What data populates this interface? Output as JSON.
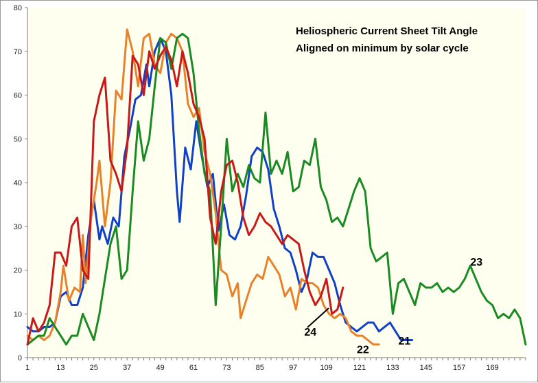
{
  "chart_data": {
    "type": "line",
    "title": "Heliospheric Current Sheet Tilt Angle",
    "subtitle": "Aligned on minimum by solar cycle",
    "xlabel": "",
    "ylabel": "",
    "xlim": [
      1,
      181
    ],
    "ylim": [
      0,
      80
    ],
    "x_ticks": [
      1,
      13,
      25,
      37,
      49,
      61,
      73,
      85,
      97,
      109,
      121,
      133,
      145,
      157,
      169
    ],
    "y_ticks": [
      0,
      10,
      20,
      30,
      40,
      50,
      60,
      70,
      80
    ],
    "grid": false,
    "legend": "none",
    "plot_background": "#fffff0",
    "series": [
      {
        "name": "21",
        "color": "#1040c8",
        "points": [
          [
            1,
            7
          ],
          [
            3,
            6
          ],
          [
            5,
            6
          ],
          [
            7,
            7
          ],
          [
            9,
            7
          ],
          [
            11,
            8
          ],
          [
            13,
            14
          ],
          [
            15,
            15
          ],
          [
            17,
            12
          ],
          [
            19,
            12
          ],
          [
            21,
            16
          ],
          [
            23,
            28
          ],
          [
            25,
            36
          ],
          [
            27,
            27
          ],
          [
            28,
            30
          ],
          [
            30,
            26
          ],
          [
            32,
            32
          ],
          [
            34,
            30
          ],
          [
            36,
            46
          ],
          [
            38,
            52
          ],
          [
            40,
            59
          ],
          [
            42,
            60
          ],
          [
            44,
            67
          ],
          [
            45,
            62
          ],
          [
            47,
            70
          ],
          [
            49,
            73
          ],
          [
            51,
            70
          ],
          [
            53,
            60
          ],
          [
            55,
            38
          ],
          [
            56,
            31
          ],
          [
            58,
            48
          ],
          [
            60,
            43
          ],
          [
            62,
            54
          ],
          [
            64,
            46
          ],
          [
            66,
            39
          ],
          [
            68,
            42
          ],
          [
            70,
            29
          ],
          [
            72,
            35
          ],
          [
            74,
            28
          ],
          [
            76,
            27
          ],
          [
            78,
            30
          ],
          [
            80,
            37
          ],
          [
            82,
            46
          ],
          [
            84,
            48
          ],
          [
            86,
            47
          ],
          [
            88,
            43
          ],
          [
            90,
            34
          ],
          [
            92,
            30
          ],
          [
            94,
            25
          ],
          [
            96,
            24
          ],
          [
            98,
            20
          ],
          [
            100,
            15
          ],
          [
            102,
            18
          ],
          [
            104,
            24
          ],
          [
            106,
            23
          ],
          [
            108,
            23
          ],
          [
            110,
            20
          ],
          [
            112,
            17
          ],
          [
            114,
            12
          ],
          [
            116,
            8
          ],
          [
            118,
            7
          ],
          [
            120,
            6
          ],
          [
            122,
            7
          ],
          [
            124,
            8
          ],
          [
            126,
            8
          ],
          [
            128,
            6
          ],
          [
            130,
            7
          ],
          [
            132,
            8
          ],
          [
            134,
            6
          ],
          [
            136,
            4
          ],
          [
            138,
            4
          ],
          [
            140,
            4
          ]
        ]
      },
      {
        "name": "22",
        "color": "#e8822a",
        "points": [
          [
            1,
            5
          ],
          [
            3,
            4
          ],
          [
            5,
            5
          ],
          [
            7,
            4
          ],
          [
            9,
            5
          ],
          [
            11,
            8
          ],
          [
            13,
            15
          ],
          [
            14,
            21
          ],
          [
            16,
            13
          ],
          [
            18,
            16
          ],
          [
            20,
            15
          ],
          [
            21,
            28
          ],
          [
            22,
            17
          ],
          [
            24,
            32
          ],
          [
            26,
            40
          ],
          [
            27,
            45
          ],
          [
            29,
            30
          ],
          [
            31,
            40
          ],
          [
            33,
            61
          ],
          [
            35,
            59
          ],
          [
            37,
            75
          ],
          [
            39,
            70
          ],
          [
            41,
            62
          ],
          [
            43,
            73
          ],
          [
            45,
            74
          ],
          [
            47,
            67
          ],
          [
            49,
            65
          ],
          [
            51,
            72
          ],
          [
            53,
            74
          ],
          [
            55,
            73
          ],
          [
            57,
            70
          ],
          [
            59,
            58
          ],
          [
            61,
            55
          ],
          [
            63,
            57
          ],
          [
            65,
            47
          ],
          [
            67,
            42
          ],
          [
            69,
            33
          ],
          [
            71,
            20
          ],
          [
            73,
            19
          ],
          [
            75,
            14
          ],
          [
            77,
            17
          ],
          [
            78,
            9
          ],
          [
            80,
            13
          ],
          [
            82,
            17
          ],
          [
            84,
            19
          ],
          [
            86,
            18
          ],
          [
            88,
            23
          ],
          [
            90,
            21
          ],
          [
            92,
            19
          ],
          [
            94,
            14
          ],
          [
            96,
            16
          ],
          [
            98,
            11
          ],
          [
            100,
            18
          ],
          [
            102,
            17
          ],
          [
            104,
            17
          ],
          [
            106,
            16
          ],
          [
            108,
            12
          ],
          [
            110,
            10
          ],
          [
            112,
            9
          ],
          [
            114,
            10
          ],
          [
            116,
            9
          ],
          [
            118,
            6
          ],
          [
            120,
            5
          ],
          [
            122,
            5
          ],
          [
            124,
            4
          ],
          [
            126,
            3
          ],
          [
            128,
            3
          ]
        ]
      },
      {
        "name": "23",
        "color": "#1a8a22",
        "points": [
          [
            1,
            3
          ],
          [
            3,
            4
          ],
          [
            5,
            5
          ],
          [
            7,
            5
          ],
          [
            9,
            9
          ],
          [
            11,
            7
          ],
          [
            13,
            5
          ],
          [
            15,
            3
          ],
          [
            17,
            5
          ],
          [
            19,
            5
          ],
          [
            21,
            10
          ],
          [
            23,
            7
          ],
          [
            25,
            4
          ],
          [
            27,
            10
          ],
          [
            29,
            18
          ],
          [
            31,
            26
          ],
          [
            33,
            30
          ],
          [
            35,
            18
          ],
          [
            37,
            20
          ],
          [
            39,
            38
          ],
          [
            41,
            54
          ],
          [
            43,
            45
          ],
          [
            45,
            50
          ],
          [
            47,
            62
          ],
          [
            49,
            73
          ],
          [
            51,
            72
          ],
          [
            53,
            66
          ],
          [
            55,
            73
          ],
          [
            57,
            74
          ],
          [
            59,
            73
          ],
          [
            61,
            65
          ],
          [
            63,
            52
          ],
          [
            65,
            42
          ],
          [
            67,
            38
          ],
          [
            69,
            12
          ],
          [
            71,
            30
          ],
          [
            73,
            50
          ],
          [
            75,
            38
          ],
          [
            77,
            42
          ],
          [
            79,
            39
          ],
          [
            81,
            44
          ],
          [
            83,
            41
          ],
          [
            85,
            40
          ],
          [
            87,
            56
          ],
          [
            89,
            42
          ],
          [
            91,
            45
          ],
          [
            93,
            42
          ],
          [
            95,
            47
          ],
          [
            97,
            38
          ],
          [
            99,
            39
          ],
          [
            101,
            45
          ],
          [
            103,
            44
          ],
          [
            105,
            50
          ],
          [
            107,
            39
          ],
          [
            109,
            36
          ],
          [
            111,
            31
          ],
          [
            113,
            32
          ],
          [
            115,
            30
          ],
          [
            117,
            34
          ],
          [
            119,
            38
          ],
          [
            121,
            41
          ],
          [
            123,
            38
          ],
          [
            125,
            25
          ],
          [
            127,
            22
          ],
          [
            129,
            23
          ],
          [
            131,
            24
          ],
          [
            133,
            10
          ],
          [
            135,
            17
          ],
          [
            137,
            18
          ],
          [
            139,
            15
          ],
          [
            141,
            12
          ],
          [
            143,
            17
          ],
          [
            145,
            16
          ],
          [
            147,
            16
          ],
          [
            149,
            17
          ],
          [
            151,
            15
          ],
          [
            153,
            16
          ],
          [
            155,
            15
          ],
          [
            157,
            16
          ],
          [
            159,
            18
          ],
          [
            161,
            21
          ],
          [
            163,
            18
          ],
          [
            165,
            15
          ],
          [
            167,
            13
          ],
          [
            169,
            12
          ],
          [
            171,
            9
          ],
          [
            173,
            10
          ],
          [
            175,
            9
          ],
          [
            177,
            11
          ],
          [
            179,
            9
          ],
          [
            181,
            3
          ]
        ]
      },
      {
        "name": "24",
        "color": "#c81818",
        "points": [
          [
            1,
            3
          ],
          [
            3,
            9
          ],
          [
            5,
            6
          ],
          [
            7,
            8
          ],
          [
            9,
            12
          ],
          [
            11,
            24
          ],
          [
            13,
            24
          ],
          [
            15,
            21
          ],
          [
            17,
            30
          ],
          [
            19,
            32
          ],
          [
            21,
            20
          ],
          [
            23,
            18
          ],
          [
            25,
            54
          ],
          [
            27,
            60
          ],
          [
            29,
            64
          ],
          [
            31,
            45
          ],
          [
            33,
            42
          ],
          [
            35,
            38
          ],
          [
            37,
            48
          ],
          [
            39,
            69
          ],
          [
            41,
            67
          ],
          [
            43,
            60
          ],
          [
            45,
            70
          ],
          [
            47,
            66
          ],
          [
            49,
            69
          ],
          [
            51,
            71
          ],
          [
            53,
            68
          ],
          [
            55,
            62
          ],
          [
            57,
            70
          ],
          [
            59,
            65
          ],
          [
            61,
            58
          ],
          [
            63,
            55
          ],
          [
            65,
            50
          ],
          [
            67,
            32
          ],
          [
            69,
            26
          ],
          [
            71,
            38
          ],
          [
            73,
            44
          ],
          [
            75,
            45
          ],
          [
            77,
            40
          ],
          [
            79,
            32
          ],
          [
            81,
            28
          ],
          [
            83,
            30
          ],
          [
            85,
            33
          ],
          [
            87,
            31
          ],
          [
            89,
            30
          ],
          [
            91,
            28
          ],
          [
            93,
            26
          ],
          [
            95,
            28
          ],
          [
            97,
            27
          ],
          [
            99,
            26
          ],
          [
            101,
            20
          ],
          [
            103,
            15
          ],
          [
            105,
            12
          ],
          [
            107,
            14
          ],
          [
            109,
            18
          ],
          [
            111,
            10
          ],
          [
            113,
            11
          ],
          [
            115,
            16
          ]
        ]
      }
    ],
    "annotations": [
      {
        "text": "23",
        "x": 161,
        "y": 21
      },
      {
        "text": "24",
        "x": 101,
        "y": 5
      },
      {
        "text": "22",
        "x": 120,
        "y": 1
      },
      {
        "text": "21",
        "x": 135,
        "y": 3
      }
    ]
  }
}
